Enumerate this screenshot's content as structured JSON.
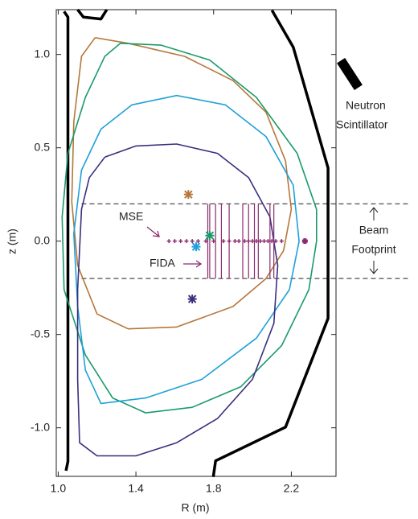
{
  "chart_data": {
    "type": "line",
    "xlabel": "R (m)",
    "ylabel": "z (m)",
    "xlim": [
      0.99,
      2.43
    ],
    "ylim": [
      -1.26,
      1.24
    ],
    "xticks": [
      {
        "value": 1.0,
        "label": "1.0"
      },
      1.4,
      1.8,
      2.2
    ],
    "yticks": [
      {
        "value": 1.0,
        "label": "1.0"
      },
      0.5,
      {
        "value": 0.0,
        "label": "0.0"
      },
      -0.5,
      {
        "value": -1.0,
        "label": "-1.0"
      }
    ],
    "series": [
      {
        "color": "#000000",
        "width": 3.5,
        "x": [
          1.03,
          1.05,
          1.05,
          1.04,
          null,
          1.1,
          1.13,
          1.22,
          1.25,
          null,
          1.798,
          1.81,
          2.17,
          2.389,
          2.389,
          2.21,
          2.1
        ],
        "values": [
          1.23,
          1.2,
          -1.18,
          -1.23,
          null,
          1.24,
          1.2,
          1.19,
          1.24,
          null,
          -1.263,
          -1.177,
          -0.996,
          -0.414,
          0.392,
          1.039,
          1.237
        ]
      },
      {
        "color": "#b5773a",
        "width": 1.6,
        "x": [
          1.19,
          1.36,
          1.65,
          1.9,
          2.07,
          2.17,
          2.2,
          2.16,
          2.07,
          1.9,
          1.61,
          1.36,
          1.2,
          1.1,
          1.07,
          1.08,
          1.12,
          1.19
        ],
        "values": [
          1.09,
          1.06,
          0.99,
          0.86,
          0.69,
          0.43,
          0.17,
          -0.05,
          -0.2,
          -0.35,
          -0.46,
          -0.47,
          -0.39,
          -0.13,
          0.21,
          0.64,
          0.99,
          1.09
        ]
      },
      {
        "color": "#1a9a6a",
        "width": 1.6,
        "x": [
          1.32,
          1.53,
          1.78,
          2.02,
          2.23,
          2.33,
          2.33,
          2.29,
          2.15,
          1.94,
          1.69,
          1.45,
          1.28,
          1.14,
          1.03,
          1.02,
          1.05,
          1.14,
          1.24,
          1.32
        ],
        "values": [
          1.06,
          1.05,
          0.97,
          0.77,
          0.47,
          0.17,
          0.0,
          -0.26,
          -0.56,
          -0.78,
          -0.89,
          -0.92,
          -0.84,
          -0.61,
          -0.26,
          0.13,
          0.47,
          0.77,
          0.99,
          1.06
        ]
      },
      {
        "color": "#1fa0d8",
        "width": 1.6,
        "x": [
          1.38,
          1.61,
          1.86,
          2.07,
          2.21,
          2.24,
          2.19,
          2.02,
          1.74,
          1.45,
          1.22,
          1.14,
          1.1,
          1.08,
          1.12,
          1.22,
          1.38
        ],
        "values": [
          0.73,
          0.78,
          0.73,
          0.56,
          0.3,
          0.0,
          -0.26,
          -0.52,
          -0.74,
          -0.84,
          -0.87,
          -0.69,
          -0.35,
          0.04,
          0.38,
          0.6,
          0.73
        ]
      },
      {
        "color": "#3a2f7d",
        "width": 1.6,
        "x": [
          1.24,
          1.4,
          1.61,
          1.82,
          1.98,
          2.09,
          2.13,
          2.11,
          2.0,
          1.82,
          1.61,
          1.4,
          1.2,
          1.11,
          1.1,
          1.1,
          1.12,
          1.16,
          1.24
        ],
        "values": [
          0.45,
          0.51,
          0.52,
          0.47,
          0.34,
          0.13,
          -0.13,
          -0.44,
          -0.74,
          -0.95,
          -1.08,
          -1.15,
          -1.15,
          -1.08,
          -0.74,
          -0.26,
          0.17,
          0.34,
          0.45
        ]
      }
    ],
    "markers": [
      {
        "color": "#b5773a",
        "x": 1.67,
        "y": 0.25
      },
      {
        "color": "#1a9a6a",
        "x": 1.78,
        "y": 0.03
      },
      {
        "color": "#1fa0d8",
        "x": 1.71,
        "y": -0.03
      },
      {
        "color": "#3a2f7d",
        "x": 1.69,
        "y": -0.31
      }
    ],
    "mse": {
      "label": "MSE",
      "color": "#8b2a6e",
      "z": 0,
      "x": [
        1.57,
        1.6,
        1.63,
        1.66,
        1.69,
        1.72,
        1.76,
        1.8,
        1.85,
        1.88,
        1.91,
        1.93,
        1.96,
        1.98,
        2.0,
        2.02,
        2.04,
        2.06,
        2.08,
        2.1,
        2.12,
        2.15,
        2.27
      ]
    },
    "fida": {
      "label": "FIDA",
      "color": "#8b2a6e",
      "zrange": [
        -0.2,
        0.2
      ],
      "x": [
        1.77,
        1.78,
        1.81,
        1.84,
        1.88,
        1.95,
        1.98,
        2.01,
        2.03,
        2.09,
        2.11
      ]
    },
    "beam": {
      "label_lines": [
        "Beam",
        "Footprint"
      ],
      "z": [
        0.2,
        -0.2
      ],
      "r_start": 1.12
    },
    "scintillator": {
      "label_lines": [
        "Neutron",
        "Scintillator"
      ]
    }
  }
}
